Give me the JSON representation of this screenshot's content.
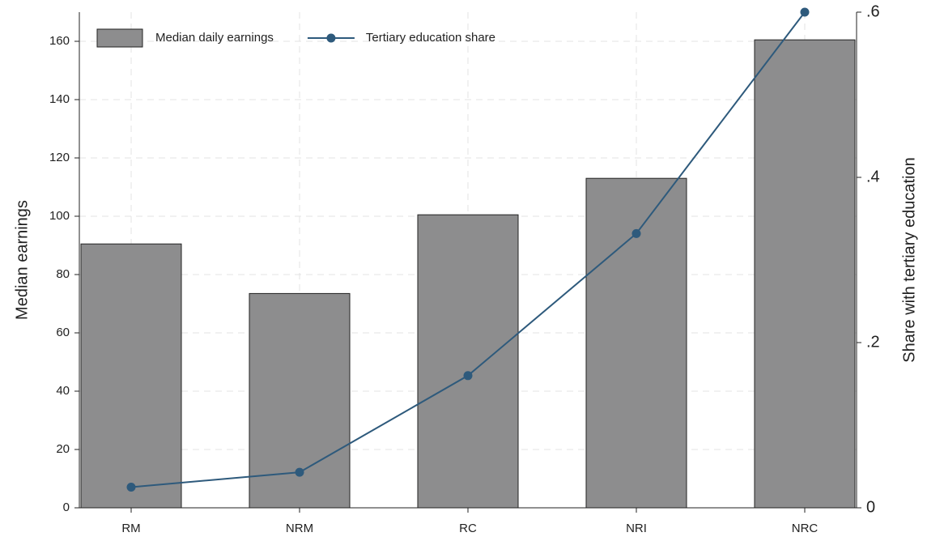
{
  "chart_data": {
    "type": "bar",
    "categories": [
      "RM",
      "NRM",
      "RC",
      "NRI",
      "NRC"
    ],
    "series": [
      {
        "name": "Median daily earnings",
        "type": "bar",
        "color": "#8d8d8e",
        "values": [
          90.5,
          73.5,
          100.5,
          113,
          160.5
        ]
      },
      {
        "name": "Tertiary education share",
        "type": "line",
        "axis": "y2",
        "color": "#2e5a7c",
        "values": [
          0.025,
          0.043,
          0.16,
          0.332,
          0.6
        ]
      }
    ],
    "ylabel": "Median earnings",
    "y2label": "Share with tertiary education",
    "ylim": [
      0,
      170
    ],
    "yticks": [
      0,
      20,
      40,
      60,
      80,
      100,
      120,
      140,
      160
    ],
    "y2lim": [
      0,
      0.6
    ],
    "y2ticks": [
      0,
      {
        "value": 0.2,
        "label": ".2"
      },
      {
        "value": 0.4,
        "label": ".4"
      },
      {
        "value": 0.6,
        "label": ".6"
      }
    ],
    "grid": true,
    "legend": "top-left"
  }
}
